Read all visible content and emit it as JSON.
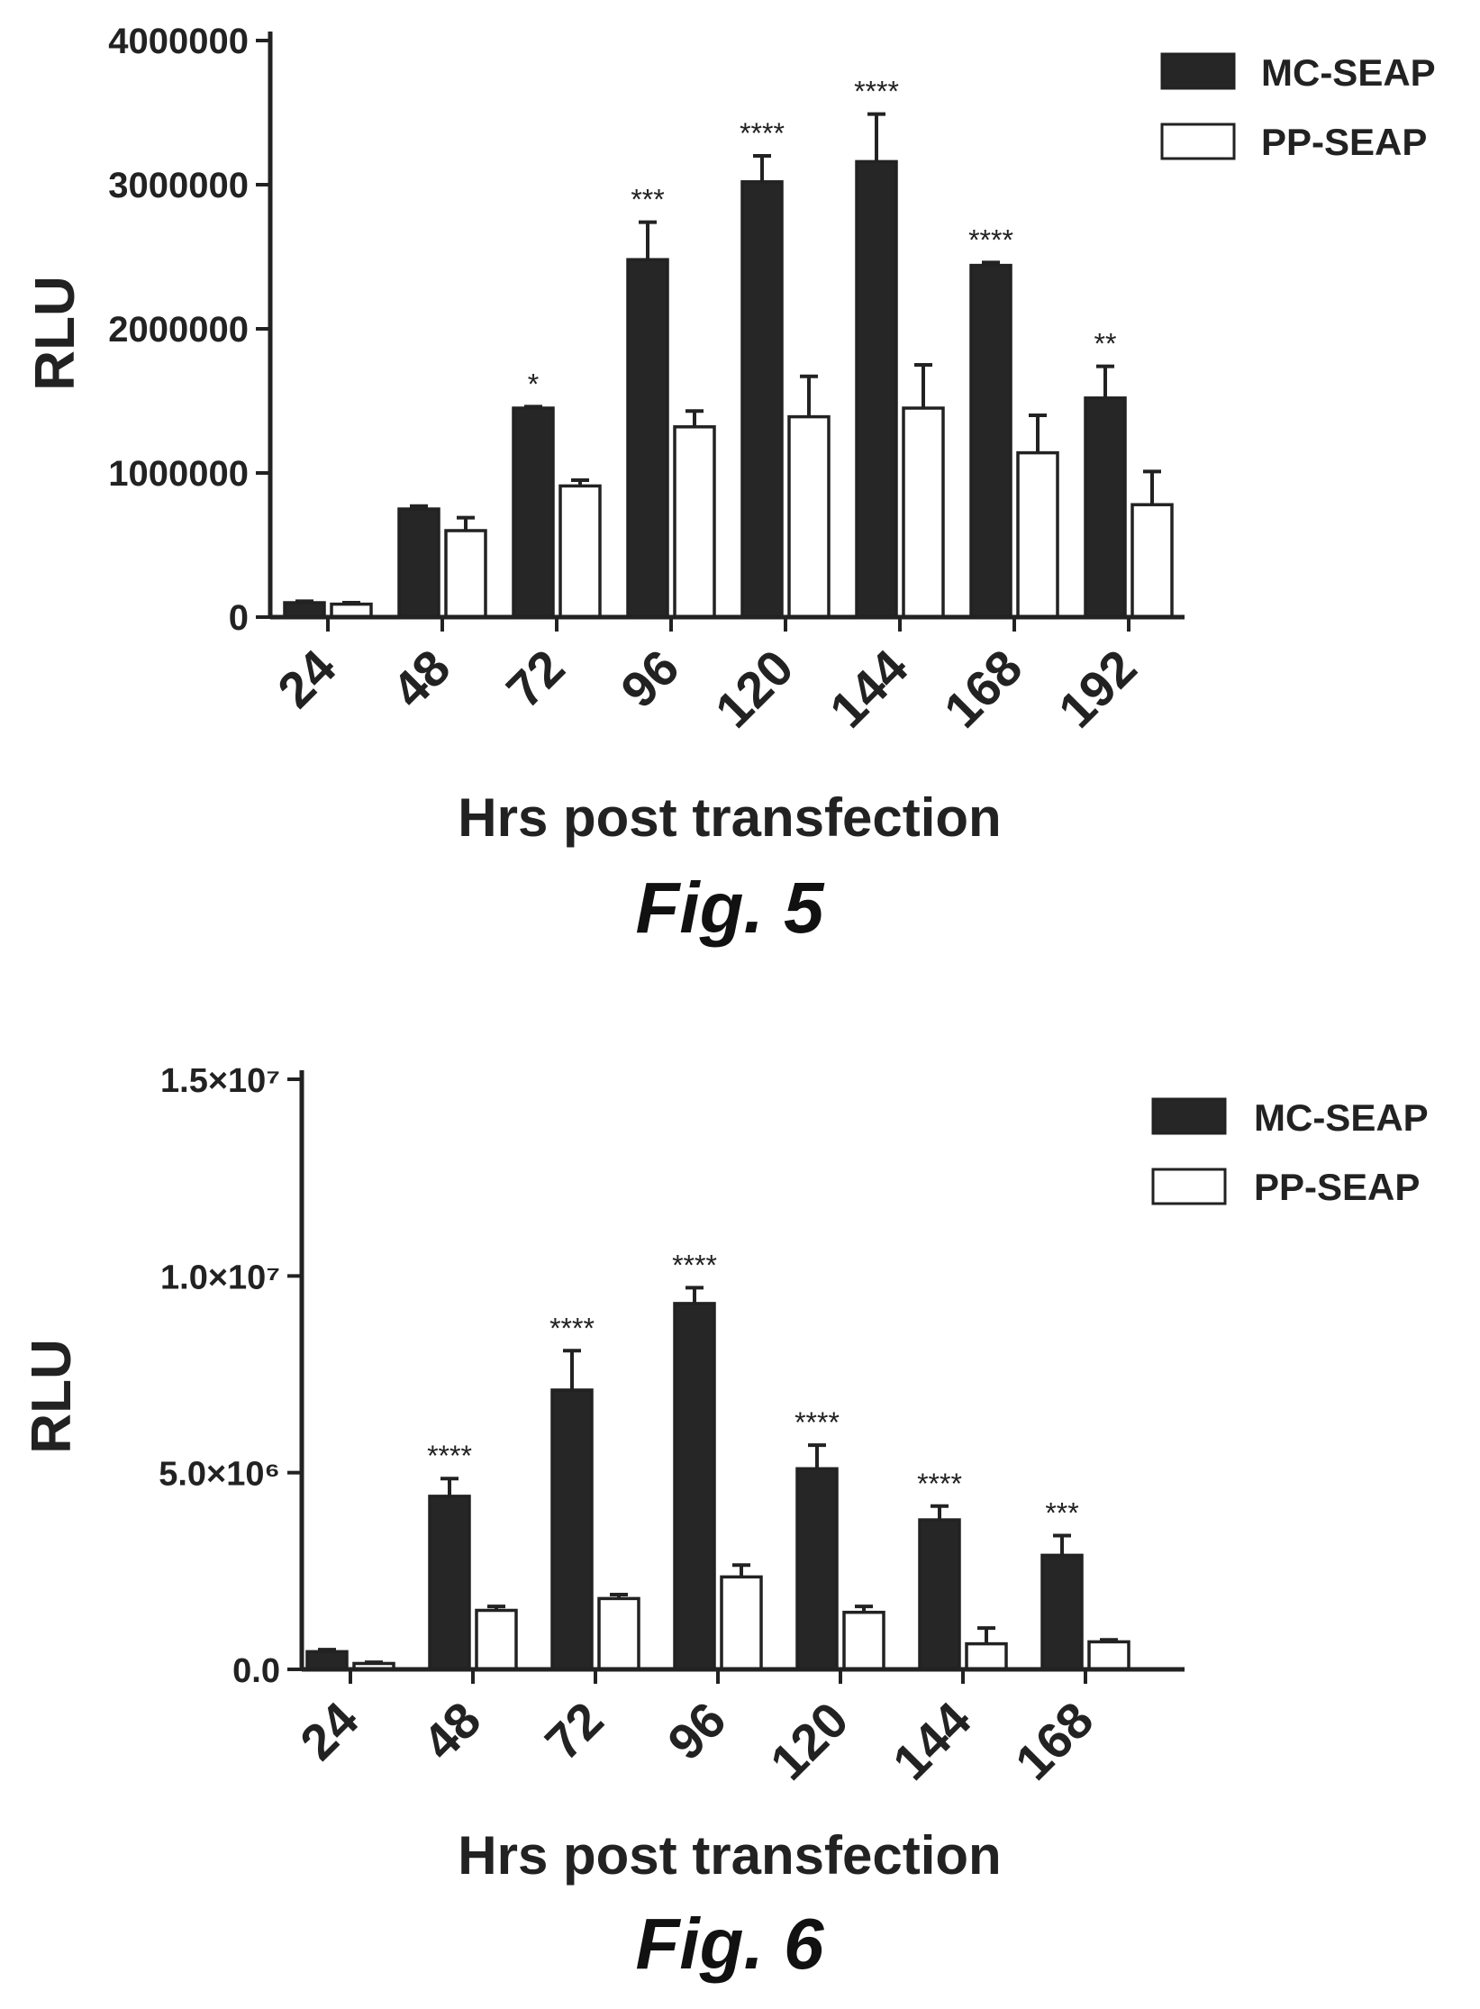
{
  "colors": {
    "mc": "#262626",
    "pp": "#ffffff",
    "axis": "#222222"
  },
  "chart_data": [
    {
      "type": "bar",
      "caption": "Fig. 5",
      "xlabel": "Hrs post transfection",
      "ylabel": "RLU",
      "ylim": [
        0,
        4000000
      ],
      "yticks": [
        0,
        1000000,
        2000000,
        3000000,
        4000000
      ],
      "ytick_labels": [
        "0",
        "1000000",
        "2000000",
        "3000000",
        "4000000"
      ],
      "categories": [
        "24",
        "48",
        "72",
        "96",
        "120",
        "144",
        "168",
        "192"
      ],
      "series": [
        {
          "name": "MC-SEAP",
          "values": [
            100000,
            750000,
            1450000,
            2480000,
            3020000,
            3160000,
            2440000,
            1520000
          ],
          "errors": [
            10000,
            20000,
            10000,
            260000,
            180000,
            330000,
            20000,
            220000
          ]
        },
        {
          "name": "PP-SEAP",
          "values": [
            90000,
            600000,
            910000,
            1320000,
            1390000,
            1450000,
            1140000,
            780000
          ],
          "errors": [
            10000,
            90000,
            40000,
            110000,
            280000,
            300000,
            260000,
            230000
          ]
        }
      ],
      "significance": [
        "",
        "",
        "*",
        "***",
        "****",
        "****",
        "****",
        "**"
      ],
      "legend": "top-right",
      "grid": false
    },
    {
      "type": "bar",
      "caption": "Fig. 6",
      "xlabel": "Hrs post transfection",
      "ylabel": "RLU",
      "ylim": [
        0,
        15000000
      ],
      "yticks": [
        0,
        5000000,
        10000000,
        15000000
      ],
      "ytick_labels": [
        "0.0",
        "5.0×10⁶",
        "1.0×10⁷",
        "1.5×10⁷"
      ],
      "categories": [
        "24",
        "48",
        "72",
        "96",
        "120",
        "144",
        "168"
      ],
      "series": [
        {
          "name": "MC-SEAP",
          "values": [
            450000,
            4400000,
            7100000,
            9300000,
            5100000,
            3800000,
            2900000
          ],
          "errors": [
            50000,
            450000,
            1000000,
            400000,
            600000,
            350000,
            500000
          ]
        },
        {
          "name": "PP-SEAP",
          "values": [
            150000,
            1500000,
            1800000,
            2350000,
            1450000,
            650000,
            700000
          ],
          "errors": [
            30000,
            100000,
            100000,
            300000,
            150000,
            400000,
            50000
          ]
        }
      ],
      "significance": [
        "",
        "****",
        "****",
        "****",
        "****",
        "****",
        "***"
      ],
      "legend": "top-right",
      "grid": false
    }
  ]
}
